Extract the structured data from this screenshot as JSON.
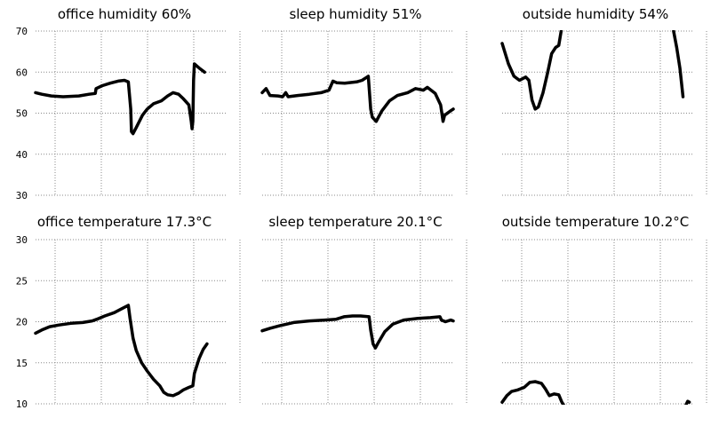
{
  "chart_data": [
    {
      "type": "line",
      "title": "office humidity 60%",
      "ylim": [
        30,
        70
      ],
      "yticks": [
        30,
        40,
        50,
        60,
        70
      ],
      "show_ytick_labels": true,
      "grid": true,
      "series": [
        {
          "values": [
            [
              0,
              55
            ],
            [
              8,
              54.6
            ],
            [
              20,
              54.2
            ],
            [
              35,
              54
            ],
            [
              55,
              54.2
            ],
            [
              68,
              54.6
            ],
            [
              76,
              54.8
            ],
            [
              77,
              56
            ],
            [
              85,
              56.7
            ],
            [
              95,
              57.3
            ],
            [
              105,
              57.8
            ],
            [
              113,
              58
            ],
            [
              118,
              57.6
            ],
            [
              121,
              51
            ],
            [
              122,
              45.5
            ],
            [
              124,
              45
            ],
            [
              128,
              46.5
            ],
            [
              136,
              49.5
            ],
            [
              142,
              51
            ],
            [
              150,
              52.3
            ],
            [
              160,
              53
            ],
            [
              168,
              54.2
            ],
            [
              175,
              55
            ],
            [
              182,
              54.6
            ],
            [
              188,
              53.5
            ],
            [
              195,
              52
            ],
            [
              198,
              48
            ],
            [
              199,
              46.2
            ],
            [
              200,
              48
            ],
            [
              201,
              58
            ],
            [
              202,
              62
            ],
            [
              208,
              61
            ],
            [
              215,
              60
            ]
          ]
        }
      ]
    },
    {
      "type": "line",
      "title": "sleep humidity 51%",
      "ylim": [
        30,
        70
      ],
      "yticks": [
        30,
        40,
        50,
        60,
        70
      ],
      "show_ytick_labels": false,
      "grid": true,
      "series": [
        {
          "values": [
            [
              0,
              55
            ],
            [
              5,
              56
            ],
            [
              10,
              54.3
            ],
            [
              20,
              54.2
            ],
            [
              26,
              54
            ],
            [
              30,
              55
            ],
            [
              33,
              54
            ],
            [
              45,
              54.3
            ],
            [
              60,
              54.6
            ],
            [
              75,
              55
            ],
            [
              85,
              55.6
            ],
            [
              90,
              57.8
            ],
            [
              95,
              57.4
            ],
            [
              105,
              57.3
            ],
            [
              120,
              57.6
            ],
            [
              127,
              58
            ],
            [
              135,
              59
            ],
            [
              138,
              51
            ],
            [
              140,
              49
            ],
            [
              145,
              48
            ],
            [
              152,
              50.5
            ],
            [
              162,
              53
            ],
            [
              172,
              54.3
            ],
            [
              185,
              55
            ],
            [
              195,
              56
            ],
            [
              205,
              55.6
            ],
            [
              210,
              56.3
            ],
            [
              220,
              54.8
            ],
            [
              227,
              52
            ],
            [
              230,
              48
            ],
            [
              232,
              49.5
            ],
            [
              240,
              50.6
            ],
            [
              243,
              51
            ]
          ]
        }
      ]
    },
    {
      "type": "line",
      "title": "outside humidity 54%",
      "ylim": [
        30,
        70
      ],
      "yticks": [
        30,
        40,
        50,
        60,
        70
      ],
      "show_ytick_labels": false,
      "grid": true,
      "series": [
        {
          "values": [
            [
              0,
              67
            ],
            [
              8,
              62
            ],
            [
              15,
              59
            ],
            [
              22,
              58
            ],
            [
              30,
              58.8
            ],
            [
              34,
              58
            ],
            [
              38,
              53.2
            ],
            [
              42,
              51
            ],
            [
              46,
              51.5
            ],
            [
              52,
              55
            ],
            [
              58,
              60
            ],
            [
              63,
              64.5
            ],
            [
              68,
              66
            ],
            [
              72,
              66.5
            ],
            [
              75,
              70
            ]
          ]
        },
        {
          "values": [
            [
              218,
              70
            ],
            [
              222,
              66
            ],
            [
              226,
              61
            ],
            [
              230,
              54
            ]
          ]
        }
      ]
    },
    {
      "type": "line",
      "title": "office temperature 17.3°C",
      "ylim": [
        10,
        30
      ],
      "yticks": [
        10,
        15,
        20,
        25,
        30
      ],
      "show_ytick_labels": true,
      "grid": true,
      "series": [
        {
          "values": [
            [
              0,
              18.6
            ],
            [
              8,
              19
            ],
            [
              18,
              19.4
            ],
            [
              30,
              19.6
            ],
            [
              45,
              19.8
            ],
            [
              60,
              19.9
            ],
            [
              72,
              20.1
            ],
            [
              78,
              20.3
            ],
            [
              88,
              20.7
            ],
            [
              100,
              21.1
            ],
            [
              110,
              21.6
            ],
            [
              118,
              22
            ],
            [
              120,
              20.5
            ],
            [
              124,
              18
            ],
            [
              128,
              16.5
            ],
            [
              135,
              15
            ],
            [
              142,
              14
            ],
            [
              150,
              13
            ],
            [
              158,
              12.2
            ],
            [
              163,
              11.4
            ],
            [
              168,
              11.1
            ],
            [
              175,
              11
            ],
            [
              182,
              11.3
            ],
            [
              188,
              11.7
            ],
            [
              195,
              12
            ],
            [
              200,
              12.2
            ],
            [
              202,
              13.7
            ],
            [
              208,
              15.5
            ],
            [
              213,
              16.6
            ],
            [
              218,
              17.3
            ]
          ]
        }
      ]
    },
    {
      "type": "line",
      "title": "sleep temperature 20.1°C",
      "ylim": [
        10,
        30
      ],
      "yticks": [
        10,
        15,
        20,
        25,
        30
      ],
      "show_ytick_labels": false,
      "grid": true,
      "series": [
        {
          "values": [
            [
              0,
              18.9
            ],
            [
              10,
              19.2
            ],
            [
              22,
              19.5
            ],
            [
              40,
              19.9
            ],
            [
              60,
              20.1
            ],
            [
              80,
              20.2
            ],
            [
              94,
              20.3
            ],
            [
              104,
              20.6
            ],
            [
              115,
              20.7
            ],
            [
              125,
              20.7
            ],
            [
              136,
              20.6
            ],
            [
              138,
              19
            ],
            [
              141,
              17.3
            ],
            [
              144,
              16.8
            ],
            [
              148,
              17.5
            ],
            [
              156,
              18.8
            ],
            [
              166,
              19.7
            ],
            [
              180,
              20.2
            ],
            [
              198,
              20.4
            ],
            [
              214,
              20.5
            ],
            [
              226,
              20.6
            ],
            [
              228,
              20.2
            ],
            [
              233,
              20
            ],
            [
              240,
              20.2
            ],
            [
              243,
              20.1
            ]
          ]
        }
      ]
    },
    {
      "type": "line",
      "title": "outside temperature 10.2°C",
      "ylim": [
        10,
        30
      ],
      "yticks": [
        10,
        15,
        20,
        25,
        30
      ],
      "show_ytick_labels": false,
      "grid": true,
      "series": [
        {
          "values": [
            [
              0,
              10.2
            ],
            [
              6,
              11
            ],
            [
              12,
              11.5
            ],
            [
              20,
              11.7
            ],
            [
              28,
              12
            ],
            [
              35,
              12.6
            ],
            [
              42,
              12.7
            ],
            [
              50,
              12.5
            ],
            [
              55,
              11.8
            ],
            [
              60,
              11
            ],
            [
              66,
              11.2
            ],
            [
              72,
              11.1
            ],
            [
              76,
              10.2
            ],
            [
              78,
              9.9
            ]
          ]
        },
        {
          "values": [
            [
              234,
              9.9
            ],
            [
              236,
              10.3
            ],
            [
              238,
              10.2
            ]
          ]
        }
      ]
    }
  ]
}
